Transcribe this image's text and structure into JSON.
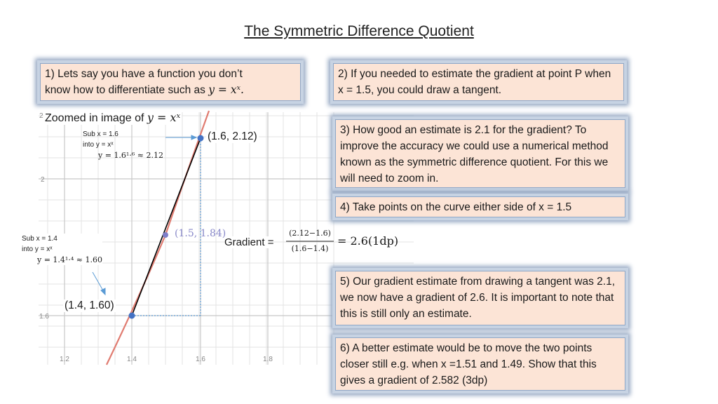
{
  "title": "The Symmetric Difference Quotient",
  "callouts": {
    "c1_line1": "1) Lets say you have a function you don’t",
    "c1_line2": "know how to differentiate such as ",
    "c1_math": "y = xˣ.",
    "c2_text": "2) If you needed to estimate the gradient at point P when x = 1.5, you could draw a tangent.",
    "c3_text": "3) How good an estimate is 2.1 for the gradient? To improve the accuracy we could use a numerical method known as the symmetric difference quotient. For this we will need to zoom in.",
    "c4_text": "4) Take points on the curve either side of x = 1.5",
    "c5_text": "5) Our gradient estimate from drawing a tangent was 2.1, we now have a gradient of 2.6. It is important to note that this is still only an estimate.",
    "c6_text": "6) A better estimate would be to move the two points closer still e.g. when x =1.51 and 1.49. Show that this gives a gradient of 2.582 (3dp)"
  },
  "graph": {
    "zoom_label": "Zoomed in image of ",
    "zoom_math": "y = xˣ",
    "x_ticks": [
      "1.2",
      "1.4",
      "1.6",
      "1.8"
    ],
    "y_ticks": [
      "2.2",
      "2",
      "1.6"
    ],
    "point_upper": "(1.6, 2.12)",
    "point_lower": "(1.4, 1.60)",
    "point_mid": "(1.5, 1.84)",
    "note_upper": [
      "Sub x = 1.6",
      "into y = xˣ",
      "y = 1.6¹·⁶ ≈ 2.12"
    ],
    "note_lower": [
      "Sub x = 1.4",
      "into y = xˣ",
      "y = 1.4¹·⁴ ≈ 1.60"
    ],
    "gradient_label": "Gradient = ",
    "gradient_num": "(2.12−1.6)",
    "gradient_den": "(1.6−1.4)",
    "gradient_result": "= 2.6(1dp)",
    "colors": {
      "curve": "#e07b70",
      "chord": "#000000",
      "guide": "#5b9bd5",
      "point": "#4472c4",
      "grid": "#d9d9d9"
    }
  }
}
